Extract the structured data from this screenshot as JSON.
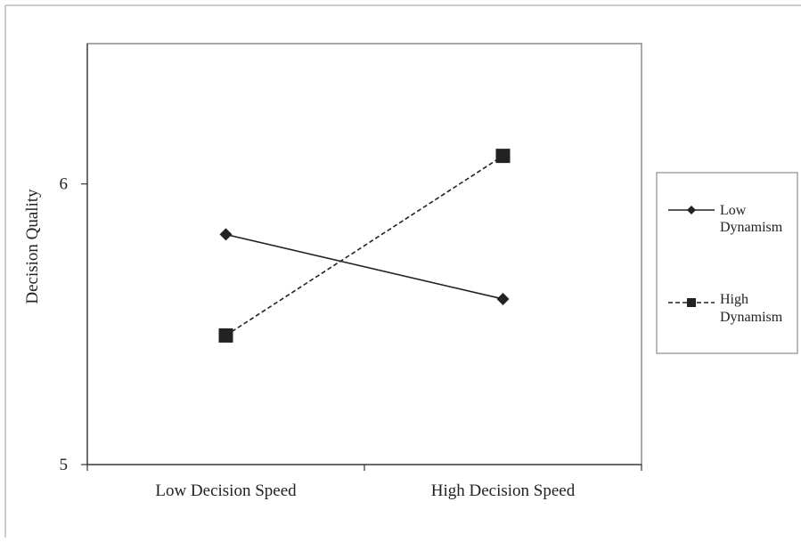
{
  "chart_data": {
    "type": "line",
    "categories": [
      "Low Decision Speed",
      "High Decision Speed"
    ],
    "ylabel": "Decision Quality",
    "xlabel": "",
    "ylim": [
      5,
      6.5
    ],
    "yticks": [
      "5",
      "6"
    ],
    "ytick_values": [
      5,
      6
    ],
    "grid": false,
    "legend_position": "right",
    "series": [
      {
        "name": "Low Dynamism",
        "line1": "Low",
        "line2": "Dynamism",
        "values": [
          5.82,
          5.59
        ],
        "marker": "diamond",
        "dash": "solid",
        "color": "#222222"
      },
      {
        "name": "High Dynamism",
        "line1": "High",
        "line2": "Dynamism",
        "values": [
          5.46,
          6.1
        ],
        "marker": "square",
        "dash": "dashed",
        "color": "#222222"
      }
    ]
  }
}
